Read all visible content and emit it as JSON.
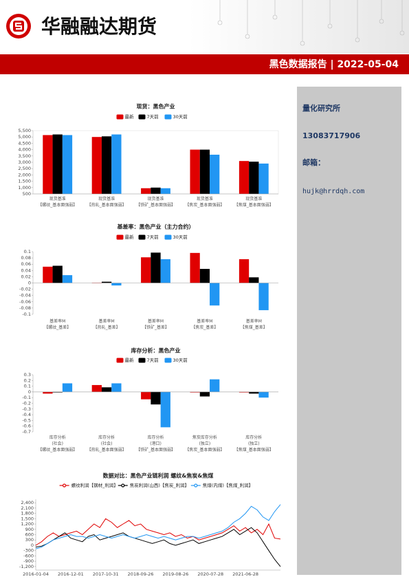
{
  "header": {
    "company": "华融融达期货",
    "title": "黑色数据报告 | 2022-05-04"
  },
  "sidebar": {
    "department": "量化研究所",
    "phone": "13083717906",
    "email_label": "邮箱：",
    "email": "hujk@hrrdqh.com"
  },
  "chart_data": [
    {
      "type": "bar",
      "title": "现货：黑色产业",
      "categories": [
        "现货基准\n【螺纹_基本面强弱】",
        "现货基准\n【热轧_基本面强弱】",
        "现货基准\n【铁矿_基本面强弱】",
        "现货基准\n【焦炭_基本面强弱】",
        "现货基准\n【焦煤_基本面强弱】"
      ],
      "series": [
        {
          "name": "最新",
          "color": "#e00000",
          "values": [
            5150,
            5000,
            950,
            4000,
            3100
          ]
        },
        {
          "name": "7天前",
          "color": "#000000",
          "values": [
            5200,
            5050,
            1000,
            4000,
            3050
          ]
        },
        {
          "name": "30天前",
          "color": "#2196f3",
          "values": [
            5150,
            5200,
            950,
            3600,
            2900
          ]
        }
      ],
      "ylim": [
        500,
        5500
      ],
      "yticks": [
        500,
        {
          "value": 1000,
          "label": "1,000"
        },
        {
          "value": 1500,
          "label": "1,500"
        },
        {
          "value": 2000,
          "label": "2,000"
        },
        {
          "value": 2500,
          "label": "2,500"
        },
        {
          "value": 3000,
          "label": "3,000"
        },
        {
          "value": 3500,
          "label": "3,500"
        },
        {
          "value": 4000,
          "label": "4,000"
        },
        {
          "value": 4500,
          "label": "4,500"
        },
        {
          "value": 5000,
          "label": "5,000"
        },
        {
          "value": 5500,
          "label": "5,500"
        }
      ],
      "legend": "top"
    },
    {
      "type": "bar",
      "title": "基差率：黑色产业（主力合约）",
      "categories": [
        "基差率M\n【螺纹_基差】",
        "基差率M\n【热轧_基差】",
        "基差率M\n【铁矿_基差】",
        "基差率M\n【焦炭_基差】",
        "基差率M\n【焦煤_基差】"
      ],
      "series": [
        {
          "name": "最新",
          "color": "#e00000",
          "values": [
            0.052,
            0.001,
            0.082,
            0.096,
            0.076
          ]
        },
        {
          "name": "7天前",
          "color": "#000000",
          "values": [
            0.055,
            0.004,
            0.097,
            0.045,
            0.018
          ]
        },
        {
          "name": "30天前",
          "color": "#2196f3",
          "values": [
            0.025,
            -0.008,
            0.076,
            -0.072,
            -0.087
          ]
        }
      ],
      "ylim": [
        -0.1,
        0.1
      ],
      "yticks": [
        -0.1,
        -0.08,
        -0.06,
        -0.04,
        -0.02,
        0,
        0.02,
        0.04,
        0.06,
        0.08,
        0.1
      ],
      "legend": "top"
    },
    {
      "type": "bar",
      "title": "库存分析：黑色产业",
      "categories": [
        "库存分析\n(社会)\n【螺纹_基本面强弱】",
        "库存分析\n(社会)\n【热轧_基本面强弱】",
        "库存分析\n(港口)\n【铁矿_基本面强弱】",
        "焦炭库存分析\n(独立)\n【焦炭_基本面强弱】",
        "库存分析\n(独立)\n【焦煤_基本面强弱】"
      ],
      "series": [
        {
          "name": "最新",
          "color": "#e00000",
          "values": [
            -0.03,
            0.12,
            -0.13,
            -0.01,
            -0.01
          ]
        },
        {
          "name": "7天前",
          "color": "#000000",
          "values": [
            -0.01,
            0.08,
            -0.22,
            -0.08,
            -0.03
          ]
        },
        {
          "name": "30天前",
          "color": "#2196f3",
          "values": [
            0.15,
            0.15,
            -0.62,
            0.22,
            -0.1
          ]
        }
      ],
      "ylim": [
        -0.7,
        0.3
      ],
      "yticks": [
        -0.7,
        -0.6,
        -0.5,
        -0.4,
        -0.3,
        -0.2,
        -0.1,
        0,
        0.1,
        0.2,
        0.3
      ],
      "legend": "top"
    },
    {
      "type": "line",
      "title": "数据对比：黑色产业链利润 螺纹&焦炭&焦煤",
      "categories": [
        "2016-01-04",
        null,
        null,
        null,
        null,
        null,
        "2016-12-01",
        null,
        null,
        null,
        null,
        null,
        "2017-10-31",
        null,
        null,
        null,
        null,
        null,
        "2018-09-26",
        null,
        null,
        null,
        null,
        null,
        "2019-08-26",
        null,
        null,
        null,
        null,
        null,
        "2020-07-28",
        null,
        null,
        null,
        null,
        null,
        "2021-06-28",
        null,
        null,
        null,
        null,
        null,
        null
      ],
      "series": [
        {
          "name": "螺纹利润【钢材_利润】",
          "color": "#e00000",
          "values": [
            0,
            200,
            500,
            700,
            500,
            600,
            700,
            800,
            600,
            900,
            1200,
            1000,
            1500,
            1300,
            1000,
            1200,
            1400,
            1100,
            1200,
            900,
            800,
            700,
            600,
            700,
            500,
            600,
            400,
            500,
            300,
            400,
            500,
            600,
            700,
            900,
            1100,
            800,
            1000,
            700,
            900,
            600,
            1200,
            400,
            350
          ]
        },
        {
          "name": "焦炭利润(山西)【焦炭_利润】",
          "color": "#000000",
          "values": [
            -100,
            -50,
            100,
            300,
            500,
            700,
            400,
            300,
            200,
            500,
            600,
            300,
            400,
            500,
            600,
            700,
            500,
            400,
            300,
            200,
            100,
            200,
            300,
            100,
            0,
            100,
            200,
            300,
            100,
            200,
            300,
            400,
            500,
            700,
            900,
            600,
            800,
            1000,
            700,
            200,
            -300,
            -800,
            -1200
          ]
        },
        {
          "name": "焦煤(内煤)【焦煤_利润】",
          "color": "#2196f3",
          "values": [
            -200,
            -100,
            100,
            300,
            400,
            500,
            600,
            500,
            500,
            400,
            500,
            600,
            500,
            400,
            500,
            600,
            500,
            400,
            500,
            600,
            500,
            400,
            500,
            400,
            300,
            400,
            500,
            500,
            400,
            500,
            600,
            700,
            800,
            1000,
            1300,
            1500,
            1800,
            2200,
            2000,
            1600,
            1400,
            1900,
            2300
          ]
        }
      ],
      "ylim": [
        -1400,
        2600
      ],
      "yticks": [
        {
          "value": -1200,
          "label": "-1,200"
        },
        -900,
        -600,
        -300,
        0,
        300,
        600,
        900,
        {
          "value": 1200,
          "label": "1,200"
        },
        {
          "value": 1500,
          "label": "1,500"
        },
        {
          "value": 1800,
          "label": "1,800"
        },
        {
          "value": 2100,
          "label": "2,100"
        },
        {
          "value": 2400,
          "label": "2,400"
        }
      ],
      "legend": "top"
    }
  ]
}
